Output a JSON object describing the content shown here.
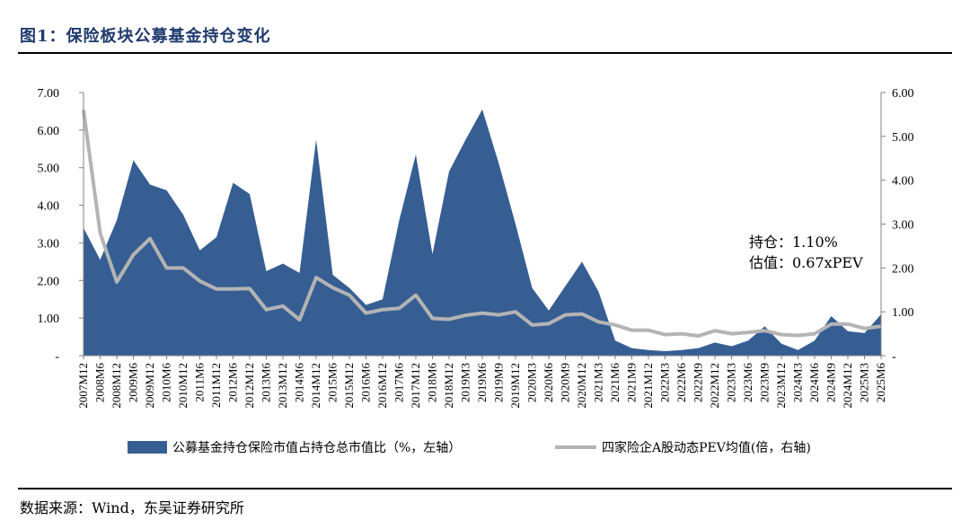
{
  "figure": {
    "title": "图1：保险板块公募基金持仓变化",
    "source": "数据来源：Wind，东吴证券研究所"
  },
  "chart_data": {
    "type": "area+line",
    "categories": [
      "2007M12",
      "2008M6",
      "2008M12",
      "2009M6",
      "2009M12",
      "2010M6",
      "2010M12",
      "2011M6",
      "2011M12",
      "2012M6",
      "2012M12",
      "2013M6",
      "2013M12",
      "2014M6",
      "2014M12",
      "2015M6",
      "2015M12",
      "2016M6",
      "2016M12",
      "2017M6",
      "2017M12",
      "2018M6",
      "2018M12",
      "2019M3",
      "2019M6",
      "2019M9",
      "2019M12",
      "2020M3",
      "2020M6",
      "2020M9",
      "2020M12",
      "2021M3",
      "2021M6",
      "2021M9",
      "2021M12",
      "2022M3",
      "2022M6",
      "2022M9",
      "2022M12",
      "2023M3",
      "2023M6",
      "2023M9",
      "2023M12",
      "2024M3",
      "2024M6",
      "2024M9",
      "2024M12",
      "2025M3",
      "2025M6"
    ],
    "series": [
      {
        "name": "公募基金持仓保险市值占持仓总市值比（%，左轴）",
        "kind": "area",
        "axis": "left",
        "color": "#365E93",
        "values": [
          3.4,
          2.55,
          3.6,
          5.2,
          4.55,
          4.4,
          3.75,
          2.8,
          3.15,
          4.6,
          4.3,
          2.25,
          2.45,
          2.2,
          5.75,
          2.15,
          1.8,
          1.35,
          1.5,
          3.6,
          5.35,
          2.7,
          4.9,
          5.75,
          6.55,
          5.1,
          3.5,
          1.8,
          1.2,
          1.85,
          2.5,
          1.7,
          0.4,
          0.2,
          0.15,
          0.12,
          0.15,
          0.2,
          0.35,
          0.25,
          0.4,
          0.78,
          0.32,
          0.15,
          0.4,
          1.05,
          0.65,
          0.6,
          1.1
        ]
      },
      {
        "name": "四家险企A股动态PEV均值(倍，右轴)",
        "kind": "line",
        "axis": "right",
        "color": "#B4B4B4",
        "values": [
          5.6,
          2.8,
          1.68,
          2.3,
          2.67,
          2.0,
          2.0,
          1.7,
          1.52,
          1.52,
          1.53,
          1.05,
          1.13,
          0.82,
          1.78,
          1.55,
          1.38,
          0.97,
          1.05,
          1.08,
          1.38,
          0.85,
          0.83,
          0.92,
          0.97,
          0.93,
          1.0,
          0.7,
          0.73,
          0.93,
          0.95,
          0.77,
          0.7,
          0.58,
          0.58,
          0.48,
          0.5,
          0.45,
          0.57,
          0.5,
          0.53,
          0.57,
          0.48,
          0.46,
          0.5,
          0.72,
          0.72,
          0.62,
          0.67
        ]
      }
    ],
    "left_axis": {
      "ylim": [
        0,
        7
      ],
      "ticks": [
        "-",
        "1.00",
        "2.00",
        "3.00",
        "4.00",
        "5.00",
        "6.00",
        "7.00"
      ]
    },
    "right_axis": {
      "ylim": [
        0,
        6
      ],
      "ticks": [
        "-",
        "1.00",
        "2.00",
        "3.00",
        "4.00",
        "5.00",
        "6.00"
      ]
    },
    "annotations": [
      "持仓：1.10%",
      "估值：0.67xPEV"
    ],
    "legend_position": "bottom",
    "grid": false
  }
}
